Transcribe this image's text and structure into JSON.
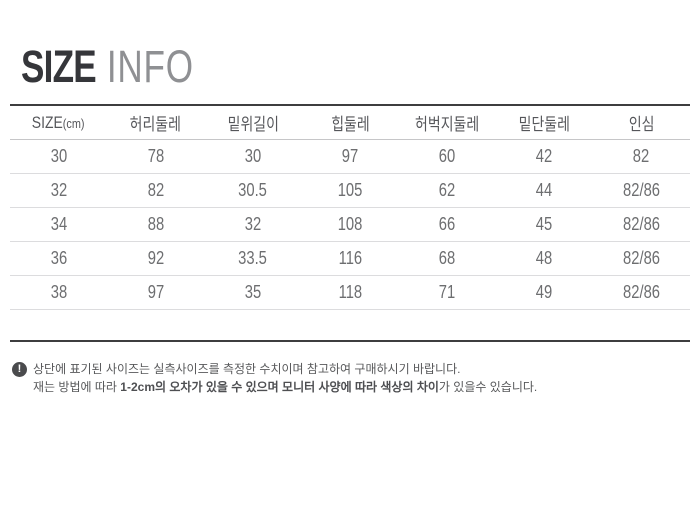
{
  "title": {
    "primary": "SIZE",
    "secondary": "INFO"
  },
  "size_table": {
    "headers": [
      "SIZE(cm)",
      "허리둘레",
      "밑위길이",
      "힙둘레",
      "허벅지둘레",
      "밑단둘레",
      "인심"
    ],
    "rows": [
      [
        "30",
        "78",
        "30",
        "97",
        "60",
        "42",
        "82"
      ],
      [
        "32",
        "82",
        "30.5",
        "105",
        "62",
        "44",
        "82/86"
      ],
      [
        "34",
        "88",
        "32",
        "108",
        "66",
        "45",
        "82/86"
      ],
      [
        "36",
        "92",
        "33.5",
        "116",
        "68",
        "48",
        "82/86"
      ],
      [
        "38",
        "97",
        "35",
        "118",
        "71",
        "49",
        "82/86"
      ]
    ]
  },
  "notes": {
    "icon_glyph": "!",
    "line1": "상단에 표기된 사이즈는 실측사이즈를 측정한 수치이며 참고하여 구매하시기 바랍니다.",
    "line2_pre": "재는 방법에 따라 ",
    "line2_bold": "1-2cm의 오차가 있을 수 있으며 모니터 사양에 따라 색상의 차이",
    "line2_post": "가 있을수 있습니다."
  },
  "colors": {
    "table_outer_border": "#3d3d3f",
    "table_row_line": "#dcdcde",
    "header_text": "#55565a",
    "cell_text": "#6d6e70",
    "title_primary": "#35363a",
    "title_secondary": "#8f9093",
    "note_icon_bg": "#4a4b4d"
  }
}
